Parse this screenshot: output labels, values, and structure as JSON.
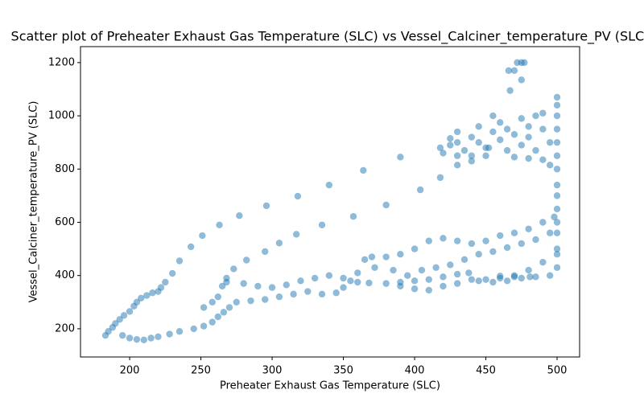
{
  "chart_data": {
    "type": "scatter",
    "title": "Scatter plot of Preheater Exhaust Gas Temperature (SLC) vs Vessel_Calciner_temperature_PV (SLC)",
    "x_label": "Preheater Exhaust Gas Temperature (SLC)",
    "y_label": "Vessel_Calciner_temperature_PV (SLC)",
    "xlim": [
      165.5,
      515.8
    ],
    "ylim": [
      94,
      1260
    ],
    "xticks": [
      200,
      250,
      300,
      350,
      400,
      450,
      500
    ],
    "yticks": [
      200,
      400,
      600,
      800,
      1000,
      1200
    ],
    "series": [
      {
        "color": "#1f77b4",
        "x": [
          183,
          185,
          188,
          190,
          193,
          196,
          200,
          203,
          205,
          208,
          212,
          216,
          220,
          195,
          200,
          205,
          210,
          215,
          220,
          228,
          235,
          245,
          252,
          258,
          262,
          266,
          270,
          275,
          285,
          295,
          305,
          315,
          325,
          335,
          345,
          350,
          355,
          360,
          368,
          380,
          390,
          400,
          410,
          420,
          430,
          438,
          445,
          455,
          465,
          475,
          485,
          495,
          252,
          258,
          262,
          265,
          268,
          280,
          290,
          300,
          310,
          320,
          330,
          340,
          350,
          360,
          365,
          370,
          380,
          390,
          400,
          410,
          420,
          430,
          440,
          450,
          460,
          470,
          480,
          490,
          498,
          372,
          385,
          395,
          405,
          415,
          425,
          435,
          445,
          455,
          465,
          475,
          485,
          495,
          500,
          390,
          400,
          410,
          420,
          430,
          440,
          450,
          460,
          470,
          480,
          490,
          500,
          500,
          500,
          500,
          500,
          500,
          500,
          500,
          500,
          500,
          500,
          500,
          500,
          500,
          222,
          225,
          230,
          235,
          243,
          251,
          263,
          277,
          296,
          318,
          340,
          364,
          390,
          418,
          268,
          273,
          282,
          295,
          305,
          317,
          335,
          357,
          380,
          404,
          418,
          430,
          440,
          452,
          420,
          425,
          430,
          435,
          440,
          445,
          450,
          455,
          460,
          465,
          470,
          475,
          480,
          485,
          490,
          495,
          430,
          445,
          460,
          475,
          485,
          490,
          455,
          470,
          480,
          490,
          495,
          450,
          440,
          430,
          425,
          465,
          480,
          472,
          475,
          477,
          466,
          470,
          475,
          467,
          481,
          470,
          460
        ],
        "values": [
          175,
          190,
          205,
          220,
          235,
          250,
          265,
          285,
          300,
          315,
          325,
          335,
          340,
          175,
          165,
          160,
          158,
          165,
          170,
          180,
          190,
          200,
          210,
          225,
          245,
          262,
          280,
          300,
          305,
          310,
          320,
          330,
          340,
          330,
          335,
          355,
          380,
          375,
          372,
          370,
          375,
          380,
          385,
          395,
          405,
          410,
          380,
          375,
          380,
          390,
          395,
          400,
          280,
          300,
          320,
          360,
          375,
          370,
          360,
          355,
          365,
          380,
          390,
          400,
          390,
          410,
          460,
          470,
          470,
          480,
          500,
          530,
          540,
          530,
          520,
          530,
          550,
          560,
          575,
          600,
          620,
          430,
          420,
          400,
          420,
          430,
          440,
          460,
          480,
          490,
          505,
          520,
          535,
          560,
          600,
          360,
          350,
          345,
          360,
          370,
          385,
          385,
          390,
          400,
          420,
          450,
          480,
          430,
          500,
          560,
          650,
          700,
          740,
          800,
          850,
          900,
          950,
          1000,
          1040,
          1070,
          355,
          375,
          408,
          455,
          508,
          550,
          590,
          625,
          662,
          698,
          740,
          795,
          845,
          880,
          390,
          425,
          458,
          490,
          522,
          555,
          590,
          622,
          665,
          722,
          768,
          815,
          850,
          880,
          860,
          890,
          900,
          870,
          920,
          900,
          880,
          940,
          910,
          870,
          930,
          890,
          920,
          870,
          950,
          900,
          940,
          960,
          975,
          990,
          1000,
          1010,
          1000,
          845,
          840,
          835,
          815,
          850,
          830,
          850,
          915,
          950,
          960,
          1200,
          1200,
          1200,
          1170,
          1170,
          1135,
          1095,
          395,
          395,
          398
        ]
      }
    ]
  }
}
